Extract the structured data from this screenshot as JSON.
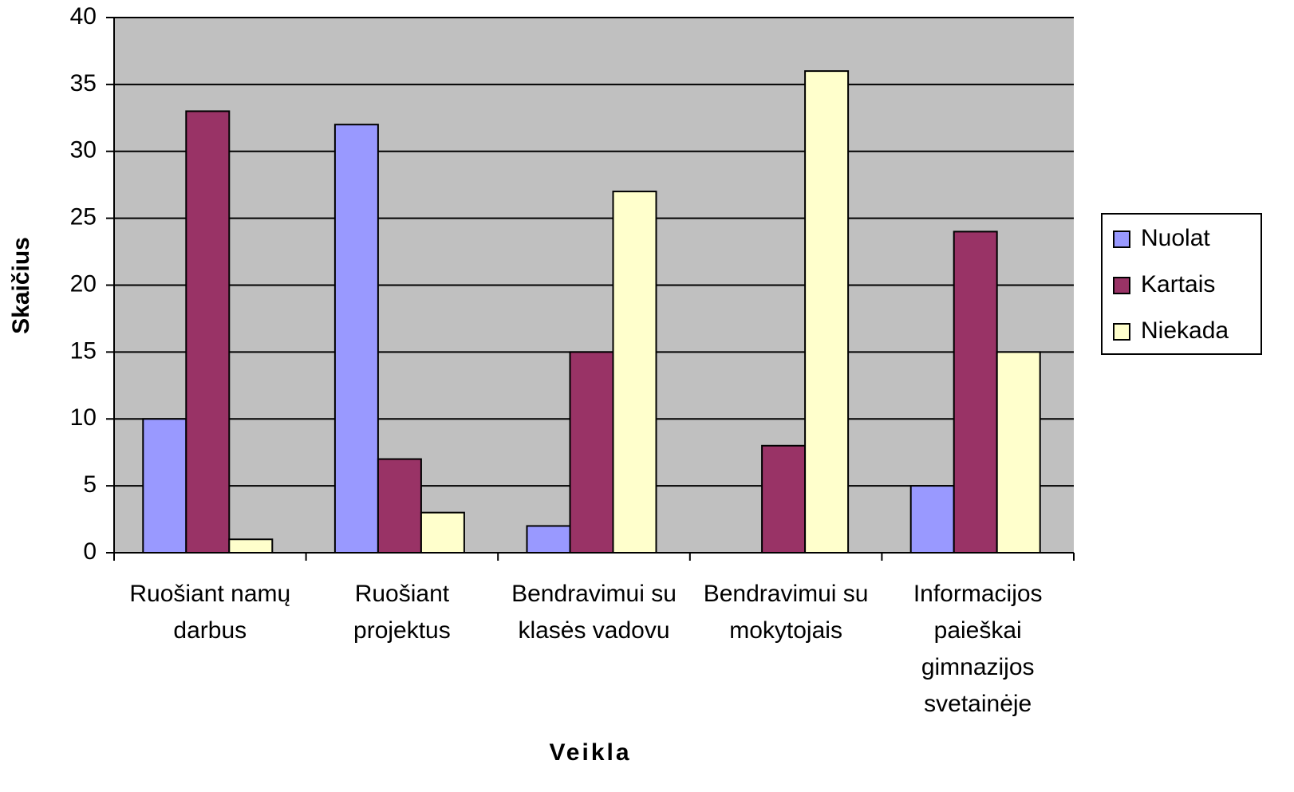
{
  "chart_data": {
    "type": "bar",
    "y_label": "Skaičius",
    "x_label": "Veikla",
    "categories": [
      "Ruošiant namų darbus",
      "Ruošiant projektus",
      "Bendravimui su klasės vadovu",
      "Bendravimui su mokytojais",
      "Informacijos paieškai gimnazijos svetainėje"
    ],
    "series": [
      {
        "name": "Nuolat",
        "color": "#9999ff",
        "values": [
          10,
          32,
          2,
          0,
          5
        ]
      },
      {
        "name": "Kartais",
        "color": "#993366",
        "values": [
          33,
          7,
          15,
          8,
          24
        ]
      },
      {
        "name": "Niekada",
        "color": "#ffffcc",
        "values": [
          1,
          3,
          27,
          36,
          15
        ]
      }
    ],
    "ylim": [
      0,
      40
    ],
    "yticks": [
      0,
      5,
      10,
      15,
      20,
      25,
      30,
      35,
      40
    ],
    "grid": true,
    "legend": "right",
    "plot_background": "#c0c0c0"
  }
}
